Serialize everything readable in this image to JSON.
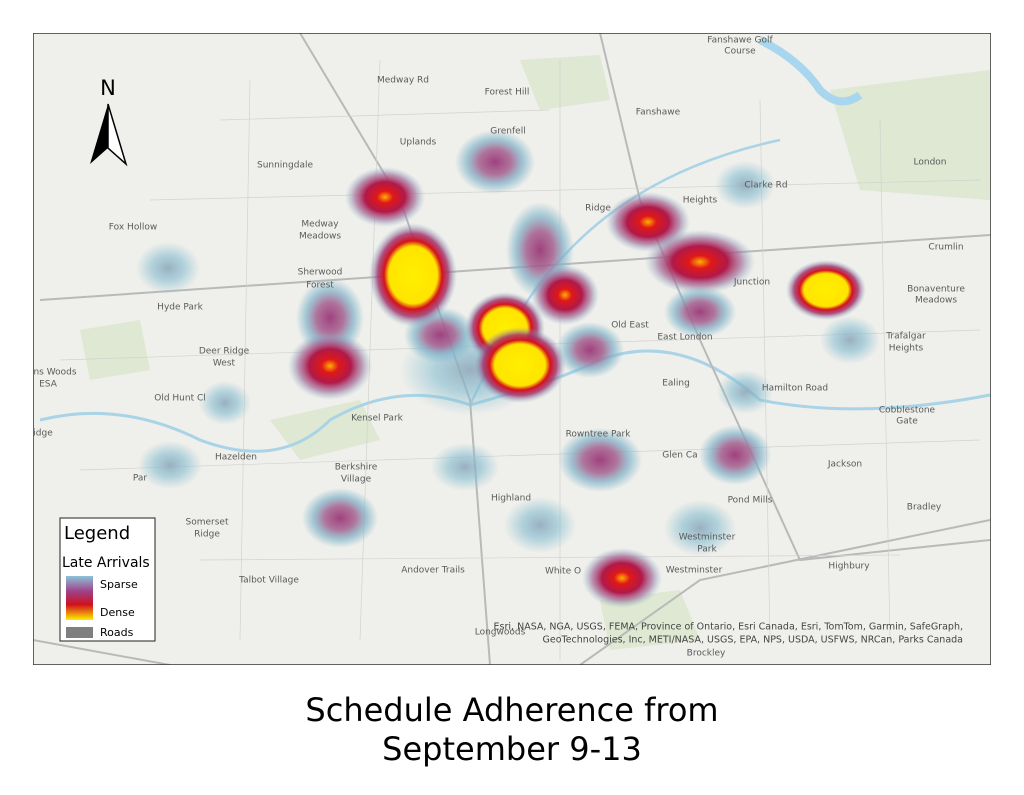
{
  "north": "N",
  "legend": {
    "title": "Legend",
    "subtitle": "Late Arrivals",
    "items": [
      "Sparse",
      "Dense",
      "Roads"
    ]
  },
  "places": [
    "Fanshawe Golf",
    "Course",
    "Medway Rd",
    "Forest Hill",
    "Fanshawe",
    "Grenfell",
    "Uplands",
    "Sunningdale",
    "London",
    "Clarke Rd",
    "Heights",
    "Ridge",
    "Fox Hollow",
    "Medway",
    "Meadows",
    "Crumlin",
    "Sherwood",
    "Forest",
    "Junction",
    "Bonaventure",
    "Meadows",
    "Hyde Park",
    "Old East",
    "Trafalgar",
    "Heights",
    "East London",
    "Deer Ridge",
    "West",
    "ns Woods",
    "ESA",
    "Ealing",
    "Hamilton Road",
    "Old Hunt Cl",
    "Kensel Park",
    "Cobblestone",
    "Gate",
    "idge",
    "Hazelden",
    "Berkshire",
    "Village",
    "Rowntree Park",
    "Glen Ca",
    "Jackson",
    "Highland",
    "Pond Mills",
    "Bradley",
    "Somerset",
    "Ridge",
    "Westminster",
    "Park",
    "Andover Trails",
    "Talbot Village",
    "White O",
    "Westminster",
    "Highbury",
    "Longwoods",
    "Brockley",
    "Par"
  ],
  "attribution": [
    "Esri, NASA, NGA, USGS, FEMA, Province of Ontario, Esri Canada, Esri, TomTom, Garmin, SafeGraph,",
    "GeoTechnologies, Inc, METI/NASA, USGS, EPA, NPS, USDA, USFWS, NRCan, Parks Canada"
  ],
  "caption": [
    "Schedule Adherence from",
    "September 9-13"
  ]
}
